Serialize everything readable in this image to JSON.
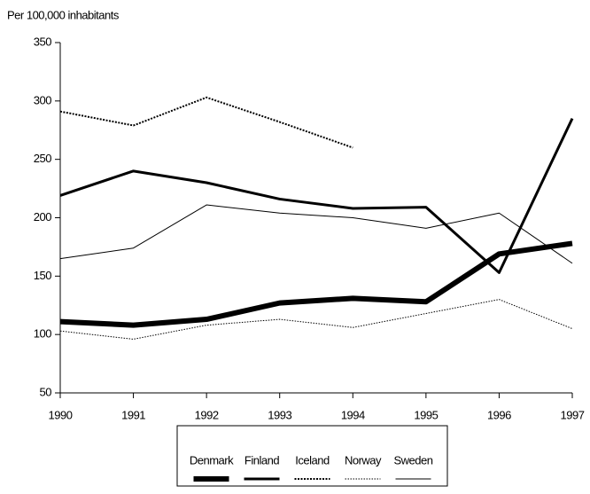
{
  "chart_data": {
    "type": "line",
    "ylabel": "Per 100,000 inhabitants",
    "categories": [
      "1990",
      "1991",
      "1992",
      "1993",
      "1994",
      "1995",
      "1996",
      "1997"
    ],
    "ylim": [
      50,
      350
    ],
    "yticks": [
      50,
      100,
      150,
      200,
      250,
      300,
      350
    ],
    "legend": "bottom",
    "series": [
      {
        "name": "Denmark",
        "color": "#000000",
        "width": 6,
        "dash": "none",
        "values": [
          111,
          108,
          113,
          127,
          131,
          128,
          169,
          178
        ]
      },
      {
        "name": "Finland",
        "color": "#000000",
        "width": 3,
        "dash": "none",
        "values": [
          219,
          240,
          230,
          216,
          208,
          209,
          153,
          285
        ]
      },
      {
        "name": "Iceland",
        "color": "#000000",
        "width": 2,
        "dash": "2 1.5",
        "values": [
          291,
          279,
          303,
          282,
          260,
          null,
          null,
          null
        ]
      },
      {
        "name": "Norway",
        "color": "#000000",
        "width": 1,
        "dash": "1.5 1.5",
        "values": [
          103,
          96,
          108,
          113,
          106,
          118,
          130,
          105
        ]
      },
      {
        "name": "Sweden",
        "color": "#000000",
        "width": 1,
        "dash": "none",
        "values": [
          165,
          174,
          211,
          204,
          200,
          191,
          204,
          161
        ]
      }
    ]
  }
}
